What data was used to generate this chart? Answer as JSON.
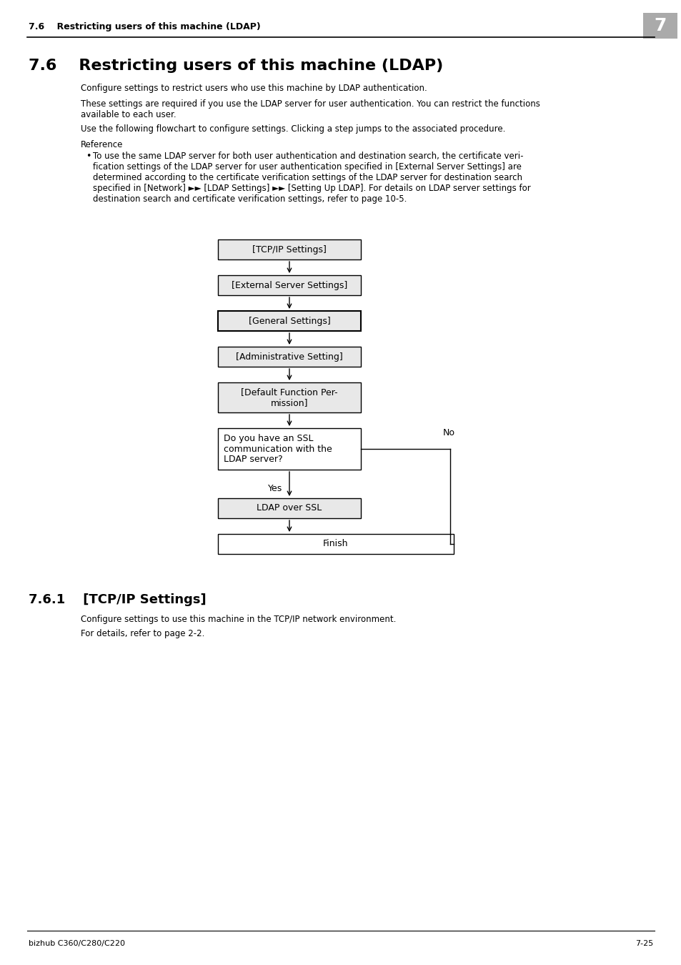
{
  "page_title": "7.6    Restricting users of this machine (LDAP)",
  "chapter_num": "7",
  "section_heading": "7.6    Restricting users of this machine (LDAP)",
  "body_text": [
    "Configure settings to restrict users who use this machine by LDAP authentication.",
    "These settings are required if you use the LDAP server for user authentication. You can restrict the functions\navailable to each user.",
    "Use the following flowchart to configure settings. Clicking a step jumps to the associated procedure.",
    "Reference"
  ],
  "bullet_text": "To use the same LDAP server for both user authentication and destination search, the certificate veri-\nfication settings of the LDAP server for user authentication specified in [External Server Settings] are\ndetermined according to the certificate verification settings of the LDAP server for destination search\nspecified in [Network] ►► [LDAP Settings] ►► [Setting Up LDAP]. For details on LDAP server settings for\ndestination search and certificate verification settings, refer to page 10-5.",
  "flowchart_boxes": [
    "[TCP/IP Settings]",
    "[External Server Settings]",
    "[General Settings]",
    "[Administrative Setting]",
    "[Default Function Per-\nmission]",
    "Do you have an SSL\ncommunication with the\nLDAP server?",
    "LDAP over SSL",
    "Finish"
  ],
  "subsection_heading": "7.6.1    [TCP/IP Settings]",
  "subsection_text": [
    "Configure settings to use this machine in the TCP/IP network environment.",
    "For details, refer to page 2-2."
  ],
  "footer_left": "bizhub C360/C280/C220",
  "footer_right": "7-25",
  "bg_color": "#ffffff",
  "box_fill_color": "#e8e8e8",
  "box_border_color": "#000000",
  "text_color": "#000000",
  "header_line_color": "#000000",
  "footer_line_color": "#000000"
}
